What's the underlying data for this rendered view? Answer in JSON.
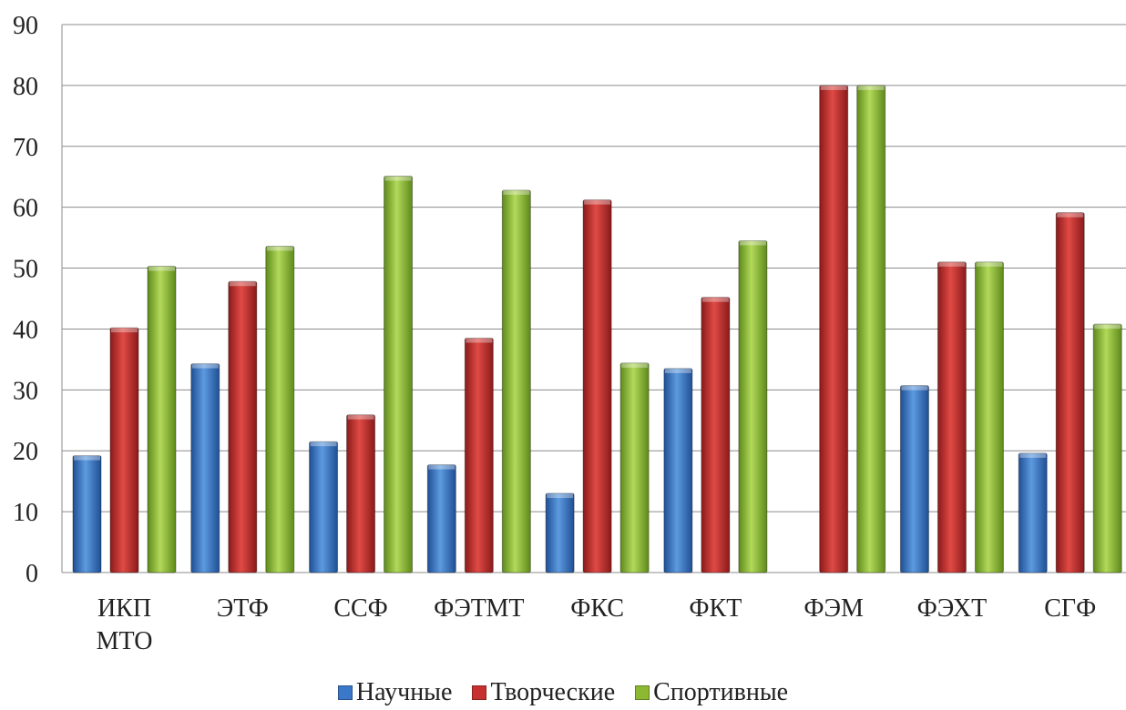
{
  "chart_data": {
    "type": "bar",
    "categories": [
      [
        "ИКП",
        "МТО"
      ],
      [
        "ЭТФ"
      ],
      [
        "ССФ"
      ],
      [
        "ФЭТМТ"
      ],
      [
        "ФКС"
      ],
      [
        "ФКТ"
      ],
      [
        "ФЭМ"
      ],
      [
        "ФЭХТ"
      ],
      [
        "СГФ"
      ]
    ],
    "series": [
      {
        "name": "Научные",
        "color": "#3b78c9",
        "values": [
          19.2,
          34.3,
          21.5,
          17.7,
          13.0,
          33.5,
          null,
          30.7,
          19.6
        ]
      },
      {
        "name": "Творческие",
        "color": "#c6302e",
        "values": [
          40.2,
          47.8,
          25.9,
          38.5,
          61.2,
          45.2,
          80.0,
          51.0,
          59.1
        ]
      },
      {
        "name": "Спортивные",
        "color": "#8db832",
        "values": [
          50.3,
          53.6,
          65.1,
          62.8,
          34.4,
          54.5,
          80.0,
          51.0,
          40.8
        ]
      }
    ],
    "ylim": [
      0,
      90
    ],
    "yticks": [
      0,
      10,
      20,
      30,
      40,
      50,
      60,
      70,
      80,
      90
    ],
    "grid": true,
    "legend": "bottom"
  }
}
